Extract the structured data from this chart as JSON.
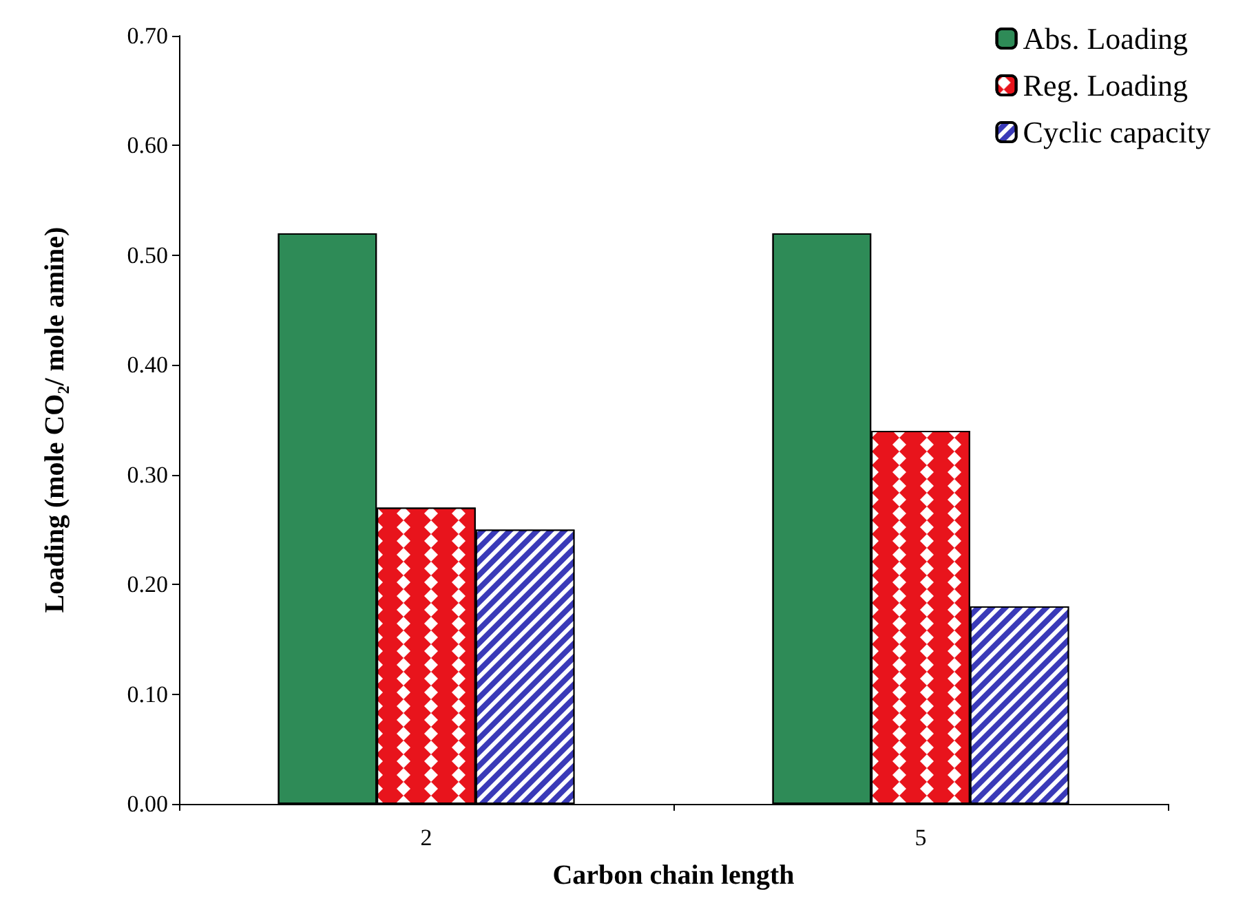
{
  "chart_data": {
    "type": "bar",
    "xlabel": "Carbon chain length",
    "ylabel": "Loading (mole CO₂/ mole amine)",
    "categories": [
      "2",
      "5"
    ],
    "series": [
      {
        "name": "Abs. Loading",
        "color": "#2e8b57",
        "values": [
          0.52,
          0.52
        ]
      },
      {
        "name": "Reg. Loading",
        "color": "#e8141c",
        "values": [
          0.27,
          0.34
        ]
      },
      {
        "name": "Cyclic capacity",
        "color": "#3a3ab8",
        "values": [
          0.25,
          0.18
        ]
      }
    ],
    "ylim": [
      0,
      0.7
    ],
    "yticks": [
      {
        "value": 0,
        "label": "0.00"
      },
      {
        "value": 0.1,
        "label": "0.10"
      },
      {
        "value": 0.2,
        "label": "0.20"
      },
      {
        "value": 0.3,
        "label": "0.30"
      },
      {
        "value": 0.4,
        "label": "0.40"
      },
      {
        "value": 0.5,
        "label": "0.50"
      },
      {
        "value": 0.6,
        "label": "0.60"
      },
      {
        "value": 0.7,
        "label": "0.70"
      }
    ],
    "grid": false,
    "legend": "top right"
  }
}
